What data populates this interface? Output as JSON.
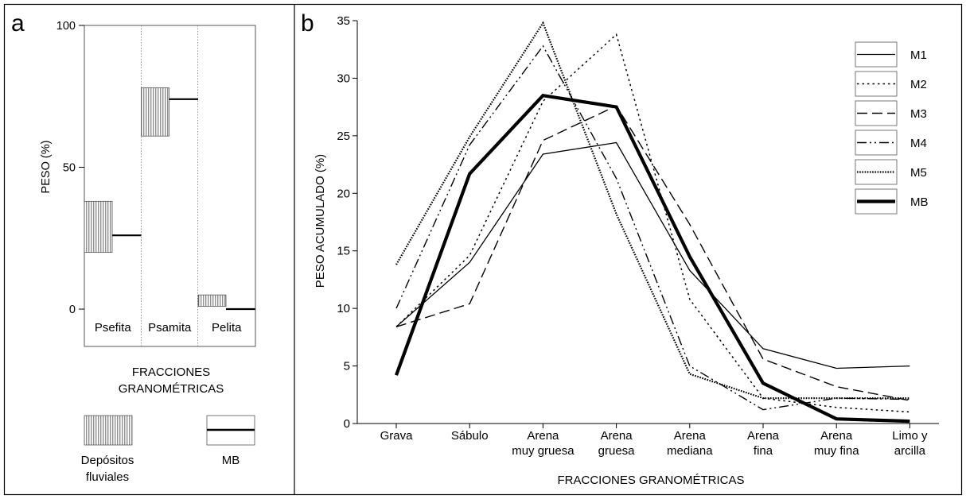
{
  "panel_a": {
    "letter": "a",
    "ylabel": "PESO (%)",
    "xlabel_line1": "FRACCIONES",
    "xlabel_line2": "GRANOMÉTRICAS",
    "legend": {
      "fluvial_line1": "Depósitos",
      "fluvial_line2": "fluviales",
      "mb": "MB"
    }
  },
  "panel_b": {
    "letter": "b",
    "ylabel": "PESO ACUMULADO  (%)",
    "xlabel": "FRACCIONES GRANOMÉTRICAS"
  },
  "chart_data": [
    {
      "type": "bar",
      "categories": [
        "Psefita",
        "Psamita",
        "Pelita"
      ],
      "ylim": [
        0,
        100
      ],
      "yticks": [
        "0",
        "50",
        "100"
      ],
      "series": [
        {
          "name": "Depósitos fluviales",
          "style": "range",
          "ranges": [
            [
              20,
              38
            ],
            [
              61,
              78
            ],
            [
              1,
              5
            ]
          ]
        },
        {
          "name": "MB",
          "style": "level",
          "values": [
            26,
            74,
            0
          ]
        }
      ]
    },
    {
      "type": "line",
      "categories": [
        [
          "Grava"
        ],
        [
          "Sábulo"
        ],
        [
          "Arena",
          "muy gruesa"
        ],
        [
          "Arena",
          "gruesa"
        ],
        [
          "Arena",
          "mediana"
        ],
        [
          "Arena",
          "fina"
        ],
        [
          "Arena",
          "muy fina"
        ],
        [
          "Limo y",
          "arcilla"
        ]
      ],
      "ylim": [
        0,
        35
      ],
      "yticks": [
        "0",
        "5",
        "10",
        "15",
        "20",
        "25",
        "30",
        "35"
      ],
      "legend_position": "top-right",
      "series": [
        {
          "name": "M1",
          "dash": "solid",
          "values": [
            8.4,
            14.0,
            23.4,
            24.4,
            13.3,
            6.5,
            4.8,
            5.0
          ]
        },
        {
          "name": "M2",
          "dash": "dotted",
          "values": [
            8.4,
            14.6,
            28.0,
            33.8,
            10.8,
            2.2,
            1.4,
            1.0
          ]
        },
        {
          "name": "M3",
          "dash": "dashed",
          "values": [
            8.4,
            10.4,
            24.6,
            27.6,
            17.3,
            5.6,
            3.2,
            2.0
          ]
        },
        {
          "name": "M4",
          "dash": "dashdot",
          "values": [
            10.0,
            24.2,
            32.8,
            21.3,
            5.0,
            1.2,
            2.2,
            2.1
          ]
        },
        {
          "name": "M5",
          "dash": "fine-dotted",
          "values": [
            13.8,
            24.9,
            34.8,
            18.2,
            4.3,
            2.2,
            2.2,
            2.2
          ]
        },
        {
          "name": "MB",
          "dash": "thick",
          "values": [
            4.2,
            21.7,
            28.5,
            27.5,
            14.5,
            3.5,
            0.4,
            0.2
          ]
        }
      ]
    }
  ]
}
